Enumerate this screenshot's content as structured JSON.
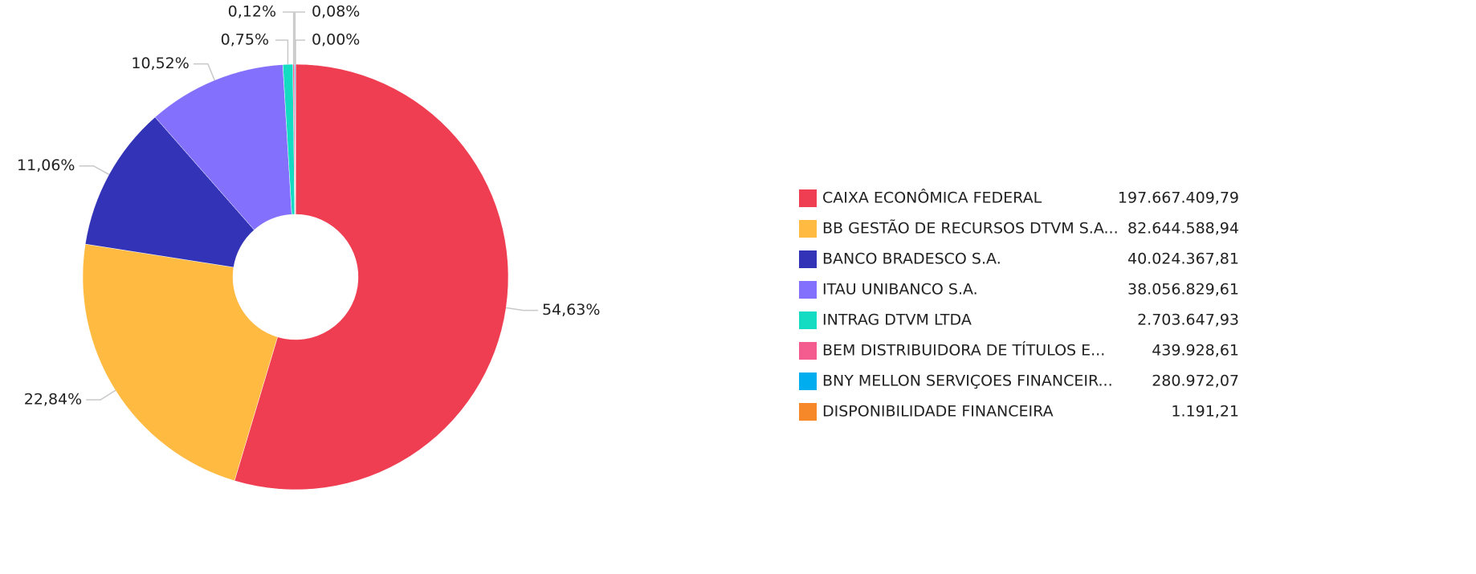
{
  "chart_data": {
    "type": "pie",
    "categories": [
      "CAIXA ECONÔMICA FEDERAL",
      "BB GESTÃO DE RECURSOS DTVM S.A...",
      "BANCO BRADESCO S.A.",
      "ITAU UNIBANCO S.A.",
      "INTRAG DTVM LTDA",
      "BEM DISTRIBUIDORA DE TÍTULOS E...",
      "BNY MELLON SERVIÇOES FINANCEIR...",
      "DISPONIBILIDADE FINANCEIRA"
    ],
    "values": [
      54.63,
      22.84,
      11.06,
      10.52,
      0.75,
      0.12,
      0.08,
      0.0
    ],
    "value_labels": [
      "54,63%",
      "22,84%",
      "11,06%",
      "10,52%",
      "0,75%",
      "0,12%",
      "0,08%",
      "0,00%"
    ],
    "amounts": [
      197667409.79,
      82644588.94,
      40024367.81,
      38056829.61,
      2703647.93,
      439928.61,
      280972.07,
      1191.21
    ],
    "amount_labels": [
      "197.667.409,79",
      "82.644.588,94",
      "40.024.367,81",
      "38.056.829,61",
      "2.703.647,93",
      "439.928,61",
      "280.972,07",
      "1.191,21"
    ],
    "colors": [
      "#ef3e51",
      "#ffba41",
      "#3333b8",
      "#8370fc",
      "#14dcc3",
      "#f45b8f",
      "#00aeef",
      "#f7882a"
    ],
    "donut": true
  }
}
